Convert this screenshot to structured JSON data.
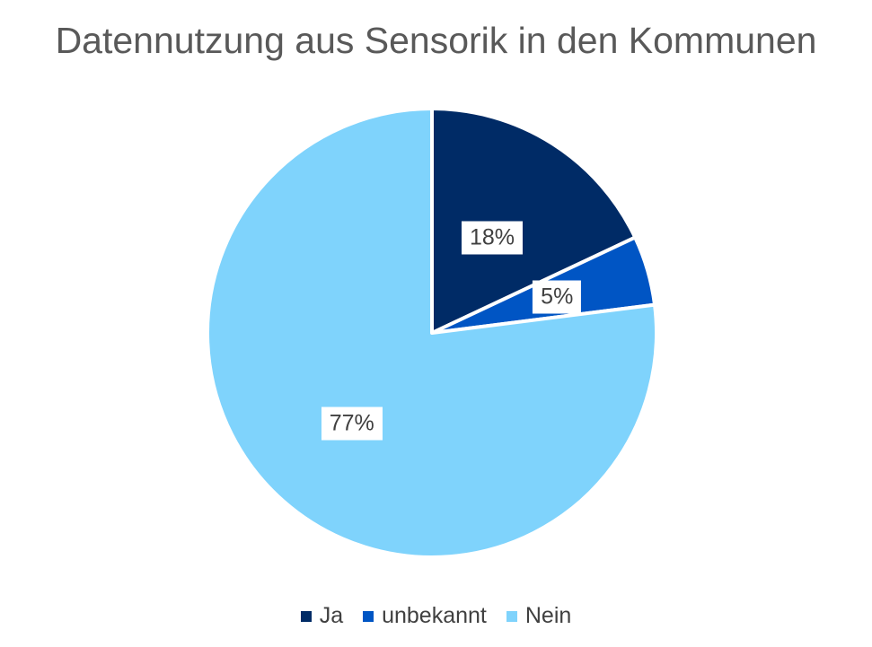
{
  "chart_data": {
    "type": "pie",
    "title": "Datennutzung aus Sensorik in den Kommunen",
    "categories": [
      "Ja",
      "unbekannt",
      "Nein"
    ],
    "values": [
      18,
      5,
      77
    ],
    "data_labels": [
      "18%",
      "5%",
      "77%"
    ],
    "colors": [
      "#002B66",
      "#0055C4",
      "#7FD3FC"
    ],
    "legend_position": "bottom"
  }
}
